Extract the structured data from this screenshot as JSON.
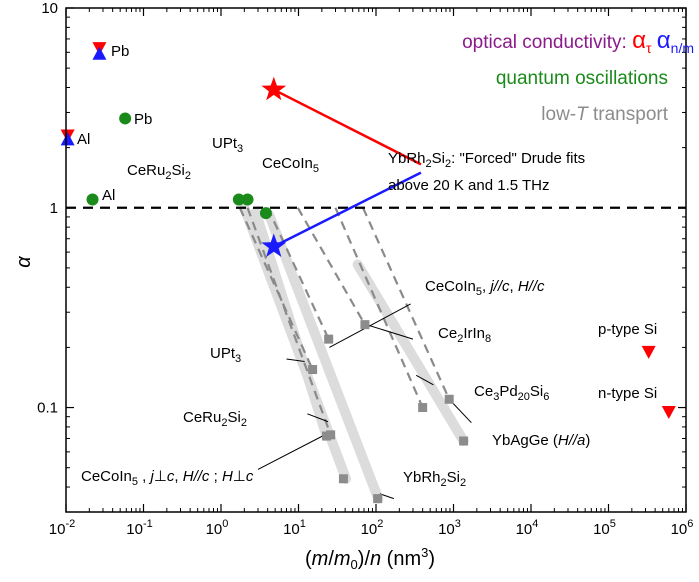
{
  "chart_data": {
    "type": "scatter",
    "xlabel": "(m/m0)/n (nm3)",
    "ylabel": "α",
    "xscale": "log",
    "yscale": "log",
    "xlim": [
      0.01,
      1000000
    ],
    "ylim": [
      0.03,
      10
    ],
    "x_ticks": [
      {
        "v": 0.01,
        "base": "10",
        "exp": "-2"
      },
      {
        "v": 0.1,
        "base": "10",
        "exp": "-1"
      },
      {
        "v": 1,
        "base": "10",
        "exp": "0"
      },
      {
        "v": 10,
        "base": "10",
        "exp": "1"
      },
      {
        "v": 100,
        "base": "10",
        "exp": "2"
      },
      {
        "v": 1000,
        "base": "10",
        "exp": "3"
      },
      {
        "v": 10000,
        "base": "10",
        "exp": "4"
      },
      {
        "v": 100000,
        "base": "10",
        "exp": "5"
      },
      {
        "v": 1000000,
        "base": "10",
        "exp": "6"
      }
    ],
    "y_ticks": [
      {
        "v": 10,
        "label": "10"
      },
      {
        "v": 1,
        "label": "1"
      },
      {
        "v": 0.1,
        "label": "0.1"
      }
    ],
    "reference_line": {
      "y": 1,
      "style": "dashed"
    },
    "legend": {
      "optical": {
        "text": "optical conductivity: ",
        "alpha_tau": "α",
        "tau_sub": "τ",
        "alpha_nm": "α",
        "nm_sub": "n/m",
        "color": "#8b1a8b",
        "tau_color": "#ff0000",
        "nm_color": "#1a1aff"
      },
      "quantum": {
        "text": "quantum oscillations",
        "color": "#1a8a1a"
      },
      "transport": {
        "pre": "low-",
        "italic": "T",
        "post": " transport",
        "color": "#8c8c8c"
      }
    },
    "series": [
      {
        "name": "optical α_τ",
        "color": "#ff0000",
        "points": [
          {
            "x": 0.027,
            "y": 6.3,
            "marker": "triangle-down"
          },
          {
            "x": 0.0105,
            "y": 2.3,
            "marker": "triangle-down"
          },
          {
            "x": 330000,
            "y": 0.19,
            "marker": "triangle-down"
          },
          {
            "x": 600000,
            "y": 0.095,
            "marker": "triangle-down"
          },
          {
            "x": 4.8,
            "y": 3.9,
            "marker": "star"
          }
        ]
      },
      {
        "name": "optical α_n/m",
        "color": "#1a1aff",
        "points": [
          {
            "x": 0.027,
            "y": 5.9,
            "marker": "triangle-up"
          },
          {
            "x": 0.0105,
            "y": 2.2,
            "marker": "triangle-up"
          },
          {
            "x": 4.8,
            "y": 0.64,
            "marker": "star"
          }
        ]
      },
      {
        "name": "quantum oscillations",
        "color": "#1a8a1a",
        "points": [
          {
            "x": 0.058,
            "y": 2.8,
            "marker": "circle"
          },
          {
            "x": 0.022,
            "y": 1.1,
            "marker": "circle"
          },
          {
            "x": 1.7,
            "y": 1.1,
            "marker": "circle"
          },
          {
            "x": 2.2,
            "y": 1.1,
            "marker": "circle"
          },
          {
            "x": 3.8,
            "y": 0.94,
            "marker": "circle"
          }
        ]
      },
      {
        "name": "low-T transport",
        "color": "#8c8c8c",
        "points": [
          {
            "x": 15.2,
            "y": 0.155,
            "marker": "square"
          },
          {
            "x": 23,
            "y": 0.072,
            "marker": "square"
          },
          {
            "x": 26,
            "y": 0.073,
            "marker": "square"
          },
          {
            "x": 24.5,
            "y": 0.22,
            "marker": "square"
          },
          {
            "x": 38,
            "y": 0.044,
            "marker": "square"
          },
          {
            "x": 72,
            "y": 0.26,
            "marker": "square"
          },
          {
            "x": 105,
            "y": 0.035,
            "marker": "square"
          },
          {
            "x": 400,
            "y": 0.1,
            "marker": "square"
          },
          {
            "x": 880,
            "y": 0.11,
            "marker": "square"
          },
          {
            "x": 1350,
            "y": 0.068,
            "marker": "square"
          }
        ]
      }
    ],
    "dashed_trends": [
      {
        "from": [
          1.75,
          1.0
        ],
        "to": [
          15.2,
          0.155
        ]
      },
      {
        "from": [
          2.2,
          1.0
        ],
        "to": [
          26,
          0.073
        ]
      },
      {
        "from": [
          4.0,
          1.0
        ],
        "to": [
          24.5,
          0.22
        ]
      },
      {
        "from": [
          9.8,
          1.0
        ],
        "to": [
          72,
          0.26
        ]
      },
      {
        "from": [
          30,
          1.0
        ],
        "to": [
          400,
          0.1
        ]
      },
      {
        "from": [
          68,
          1.0
        ],
        "to": [
          880,
          0.11
        ]
      }
    ],
    "bands": [
      {
        "from": [
          2.0,
          1.0
        ],
        "to": [
          41,
          0.044
        ]
      },
      {
        "from": [
          4.2,
          0.92
        ],
        "to": [
          107,
          0.035
        ]
      },
      {
        "from": [
          2.8,
          0.95
        ],
        "to": [
          23,
          0.072
        ]
      },
      {
        "from": [
          58,
          0.52
        ],
        "to": [
          1350,
          0.068
        ]
      }
    ],
    "annotation_lines": [
      {
        "color": "#ff0000",
        "from": [
          4.8,
          3.9
        ],
        "to": [
          380,
          1.65
        ]
      },
      {
        "color": "#1a1aff",
        "from": [
          4.8,
          0.64
        ],
        "to": [
          380,
          1.5
        ]
      }
    ],
    "leader_lines": [
      {
        "from": [
          25,
          0.2
        ],
        "to": [
          280,
          0.33
        ]
      },
      {
        "from": [
          75,
          0.26
        ],
        "to": [
          300,
          0.22
        ]
      },
      {
        "from": [
          12,
          0.17
        ],
        "to": [
          7,
          0.175
        ]
      },
      {
        "from": [
          330,
          0.145
        ],
        "to": [
          550,
          0.13
        ]
      },
      {
        "from": [
          24,
          0.085
        ],
        "to": [
          13,
          0.093
        ]
      },
      {
        "from": [
          880,
          0.11
        ],
        "to": [
          1700,
          0.084
        ]
      },
      {
        "from": [
          25,
          0.075
        ],
        "to": [
          3,
          0.049
        ]
      },
      {
        "from": [
          112,
          0.037
        ],
        "to": [
          170,
          0.035
        ]
      }
    ],
    "annotation_text": {
      "forced1": "YbRh",
      "forced1_sub": "2",
      "forced1_b": "Si",
      "forced1_sub2": "2",
      "forced1_c": ": \"Forced\" Drude fits",
      "forced2": "above 20 K and 1.5 THz"
    },
    "point_labels": {
      "pb_opt": "Pb",
      "al_opt": "Al",
      "pb_qo": "Pb",
      "al_qo": "Al",
      "upt3_top": {
        "a": "UPt",
        "sub": "3"
      },
      "ceru2si2_top": {
        "a": "CeRu",
        "sub1": "2",
        "b": "Si",
        "sub2": "2"
      },
      "cecoin5_top": {
        "a": "CeCoIn",
        "sub": "5"
      },
      "cecoin5_par": {
        "a": "CeCoIn",
        "sub": "5",
        "b": ", ",
        "c": "j//c",
        "d": ", ",
        "e": "H//c"
      },
      "ce2irin8": {
        "a": "Ce",
        "sub1": "2",
        "b": "IrIn",
        "sub2": "8"
      },
      "upt3_bot": {
        "a": "UPt",
        "sub": "3"
      },
      "ce3pd20si6": {
        "a": "Ce",
        "sub1": "3",
        "b": "Pd",
        "sub2": "20",
        "c": "Si",
        "sub3": "6"
      },
      "ceru2si2_bot": {
        "a": "CeRu",
        "sub1": "2",
        "b": "Si",
        "sub2": "2"
      },
      "ybagge": {
        "a": "YbAgGe (",
        "b": "H//a",
        "c": ")"
      },
      "cecoin5_perp": {
        "a": "CeCoIn",
        "sub": "5",
        "b": " , ",
        "c": "j",
        "d": "⊥",
        "e": "c",
        "f": ", ",
        "g": "H//c",
        "h": " ; ",
        "i": "H",
        "j": "⊥",
        "k": "c"
      },
      "ybrh2si2": {
        "a": "YbRh",
        "sub1": "2",
        "b": "Si",
        "sub2": "2"
      },
      "ptype": "p-type Si",
      "ntype": "n-type Si"
    }
  }
}
